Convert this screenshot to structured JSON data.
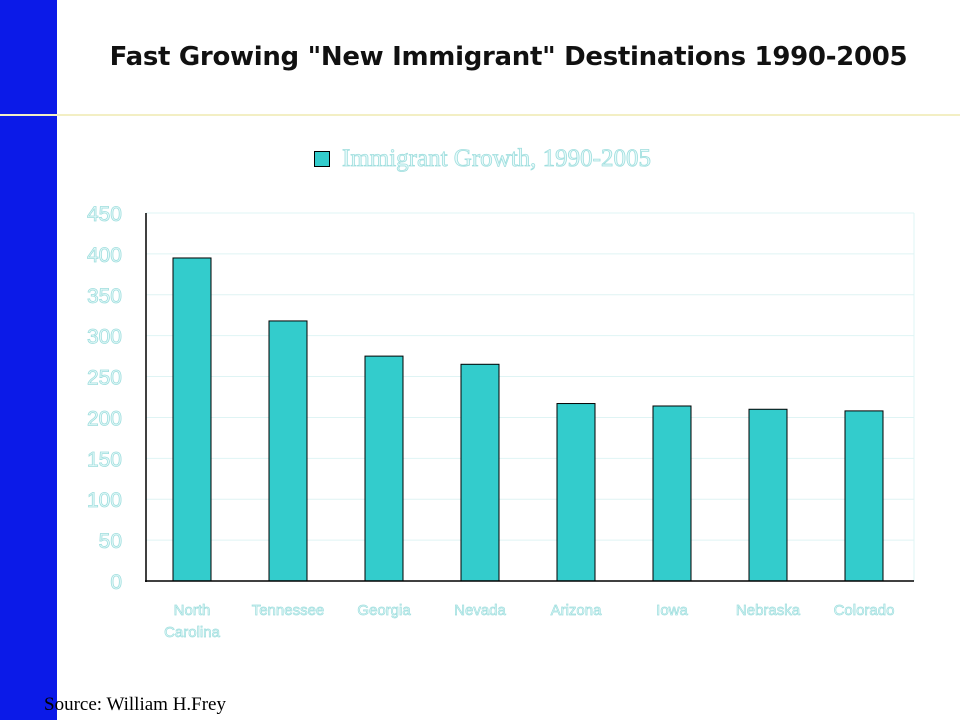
{
  "slide": {
    "title": "Fast Growing \"New Immigrant\" Destinations 1990-2005",
    "source": "Source: William H.Frey"
  },
  "colors": {
    "sidebar": "#0b1ae8",
    "bar": "#33cccc",
    "gridline": "#dff4f4"
  },
  "chart_data": {
    "type": "bar",
    "title": "",
    "xlabel": "",
    "ylabel": "",
    "ylim": [
      0,
      450
    ],
    "yticks": [
      0,
      50,
      100,
      150,
      200,
      250,
      300,
      350,
      400,
      450
    ],
    "grid": true,
    "legend_position": "top",
    "categories": [
      [
        "North",
        "Carolina"
      ],
      [
        "Tennessee"
      ],
      [
        "Georgia"
      ],
      [
        "Nevada"
      ],
      [
        "Arizona"
      ],
      [
        "Iowa"
      ],
      [
        "Nebraska"
      ],
      [
        "Colorado"
      ]
    ],
    "series": [
      {
        "name": "Immigrant Growth, 1990-2005",
        "values": [
          395,
          318,
          275,
          265,
          217,
          214,
          210,
          208
        ]
      }
    ]
  }
}
